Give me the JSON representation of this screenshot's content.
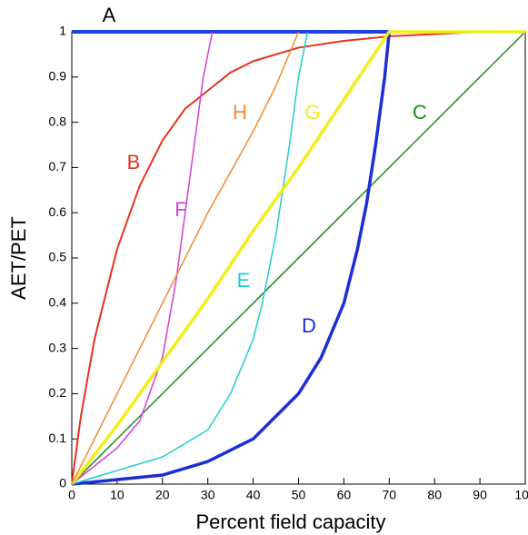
{
  "chart_data": {
    "type": "line",
    "x_label": "Percent field capacity",
    "y_label": "AET/PET",
    "xlim": [
      0,
      100
    ],
    "ylim": [
      0,
      1
    ],
    "xticks": [
      0,
      10,
      20,
      30,
      40,
      50,
      60,
      70,
      80,
      90,
      100
    ],
    "yticks": [
      0,
      0.1,
      0.2,
      0.3,
      0.4,
      0.5,
      0.6,
      0.7,
      0.8,
      0.9,
      1
    ],
    "series": [
      {
        "name": "A",
        "color": "#1f3fe0",
        "x": [
          0,
          70
        ],
        "values": [
          1,
          1
        ]
      },
      {
        "name": "B",
        "color": "#e8321e",
        "x": [
          0,
          2,
          5,
          10,
          15,
          20,
          25,
          30,
          35,
          40,
          50,
          60,
          70,
          80,
          90
        ],
        "values": [
          0,
          0.15,
          0.32,
          0.52,
          0.66,
          0.76,
          0.83,
          0.87,
          0.91,
          0.935,
          0.965,
          0.98,
          0.99,
          0.995,
          1
        ]
      },
      {
        "name": "C",
        "color": "#1e8a1e",
        "x": [
          0,
          20,
          40,
          60,
          80,
          100
        ],
        "values": [
          0,
          0.2,
          0.4,
          0.6,
          0.8,
          1
        ]
      },
      {
        "name": "D",
        "color": "#1a2fd6",
        "x": [
          0,
          10,
          20,
          30,
          40,
          50,
          55,
          60,
          63,
          65,
          67,
          69,
          70
        ],
        "values": [
          0,
          0.01,
          0.02,
          0.05,
          0.1,
          0.2,
          0.28,
          0.4,
          0.52,
          0.62,
          0.75,
          0.9,
          1
        ]
      },
      {
        "name": "E",
        "color": "#22cccc",
        "x": [
          0,
          10,
          20,
          30,
          35,
          40,
          42,
          45,
          48,
          50,
          52
        ],
        "values": [
          0,
          0.03,
          0.06,
          0.12,
          0.2,
          0.32,
          0.4,
          0.55,
          0.75,
          0.9,
          1
        ]
      },
      {
        "name": "F",
        "color": "#d63fd6",
        "x": [
          0,
          10,
          15,
          20,
          23,
          25,
          27,
          29,
          31
        ],
        "values": [
          0,
          0.08,
          0.14,
          0.28,
          0.45,
          0.6,
          0.75,
          0.9,
          1
        ]
      },
      {
        "name": "G",
        "color": "#f2ee1a",
        "x": [
          0,
          10,
          20,
          30,
          40,
          50,
          60,
          70,
          100
        ],
        "values": [
          0,
          0.13,
          0.27,
          0.41,
          0.56,
          0.7,
          0.85,
          1,
          1
        ]
      },
      {
        "name": "H",
        "color": "#f08a30",
        "x": [
          0,
          10,
          20,
          30,
          40,
          45,
          50
        ],
        "values": [
          0,
          0.2,
          0.4,
          0.6,
          0.78,
          0.88,
          1
        ]
      }
    ]
  }
}
